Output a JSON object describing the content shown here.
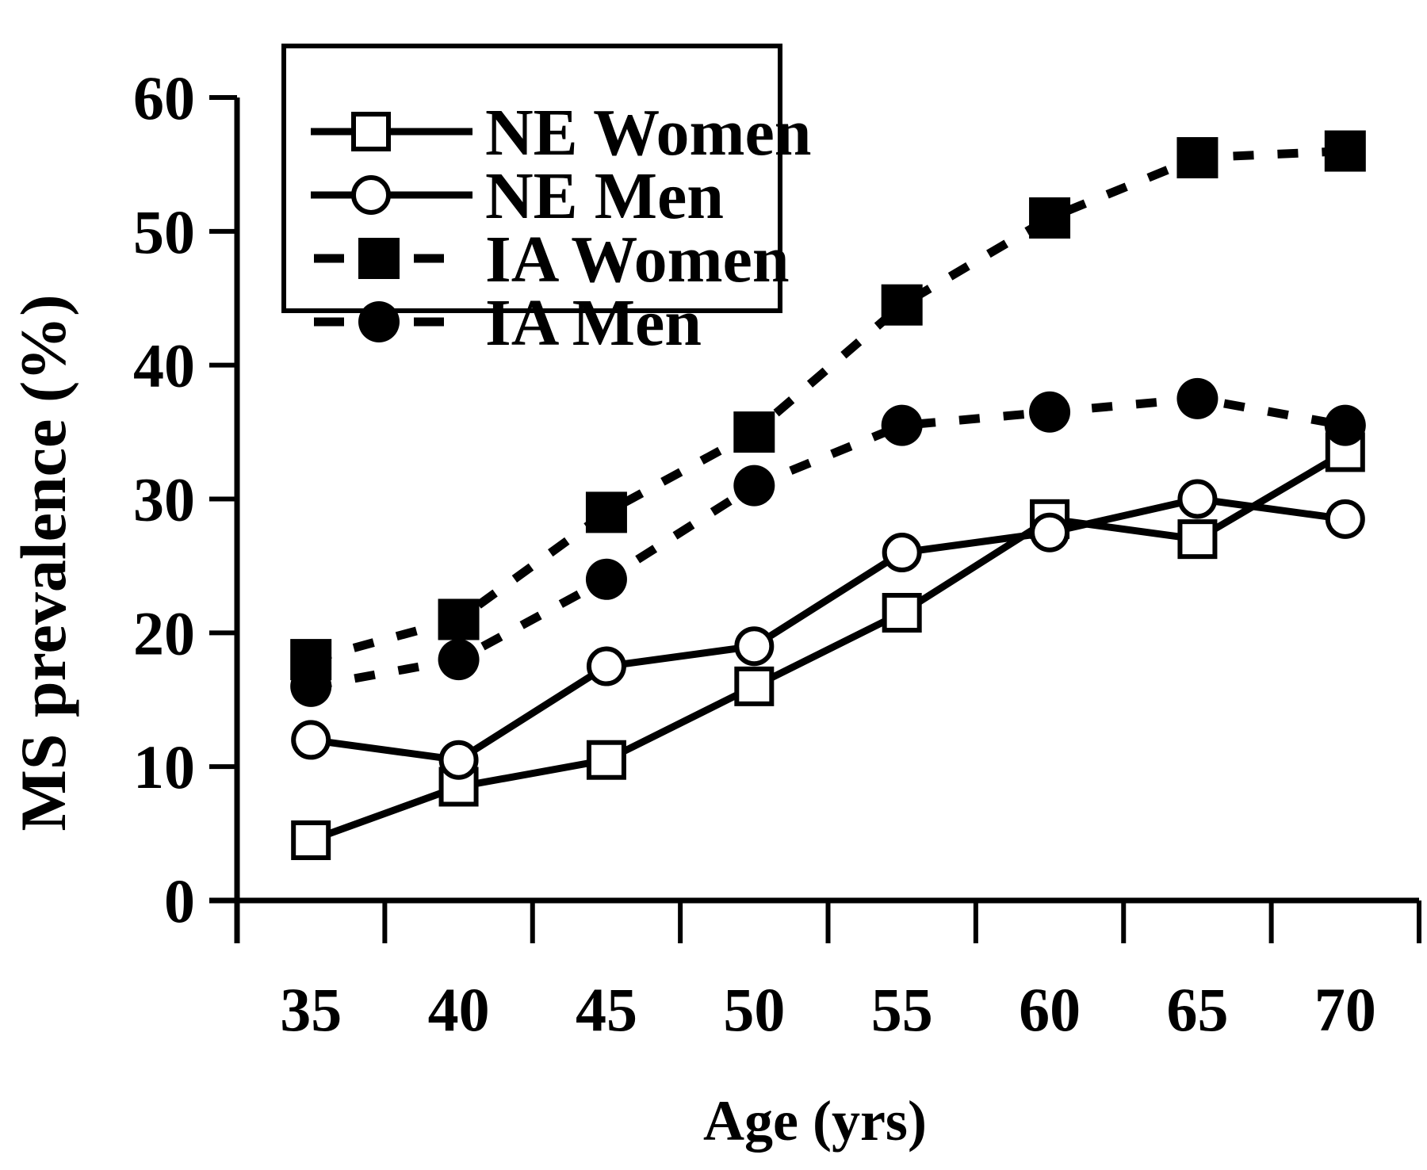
{
  "figure": {
    "background_color": "#ffffff",
    "foreground_color": "#000000"
  },
  "chart_data": {
    "type": "line",
    "title": "",
    "xlabel": "Age (yrs)",
    "ylabel": "MS prevalence (%)",
    "x": [
      35,
      40,
      45,
      50,
      55,
      60,
      65,
      70
    ],
    "x_tick_labels": [
      "35",
      "40",
      "45",
      "50",
      "55",
      "60",
      "65",
      "70"
    ],
    "y_ticks": [
      0,
      10,
      20,
      30,
      40,
      50,
      60
    ],
    "y_tick_labels": [
      "0",
      "10",
      "20",
      "30",
      "40",
      "50",
      "60"
    ],
    "ylim": [
      0,
      60
    ],
    "grid": false,
    "legend_position": "top-left",
    "series": [
      {
        "name": "NE Women",
        "line": "solid",
        "marker": "open-square",
        "values": [
          4.5,
          8.5,
          10.5,
          16,
          21.5,
          28.5,
          27,
          33.5
        ]
      },
      {
        "name": "NE Men",
        "line": "solid",
        "marker": "open-circle",
        "values": [
          12,
          10.5,
          17.5,
          19,
          26,
          27.5,
          30,
          28.5
        ]
      },
      {
        "name": "IA Women",
        "line": "dashed",
        "marker": "filled-square",
        "values": [
          18,
          21,
          29,
          35,
          44.5,
          51,
          55.5,
          56
        ]
      },
      {
        "name": "IA Men",
        "line": "dashed",
        "marker": "filled-circle",
        "values": [
          16,
          18,
          24,
          31,
          35.5,
          36.5,
          37.5,
          35.5
        ]
      }
    ],
    "legend_items": [
      {
        "label": "NE Women",
        "sample": "solid line with open square marker"
      },
      {
        "label": "NE Men",
        "sample": "solid line with open circle marker"
      },
      {
        "label": "IA Women",
        "sample": "dashed line with filled square marker"
      },
      {
        "label": "IA Men",
        "sample": "dashed line with filled circle marker"
      }
    ],
    "colors": {
      "line": "#000000",
      "marker_fill": "#000000",
      "open_marker_fill": "#ffffff"
    }
  }
}
